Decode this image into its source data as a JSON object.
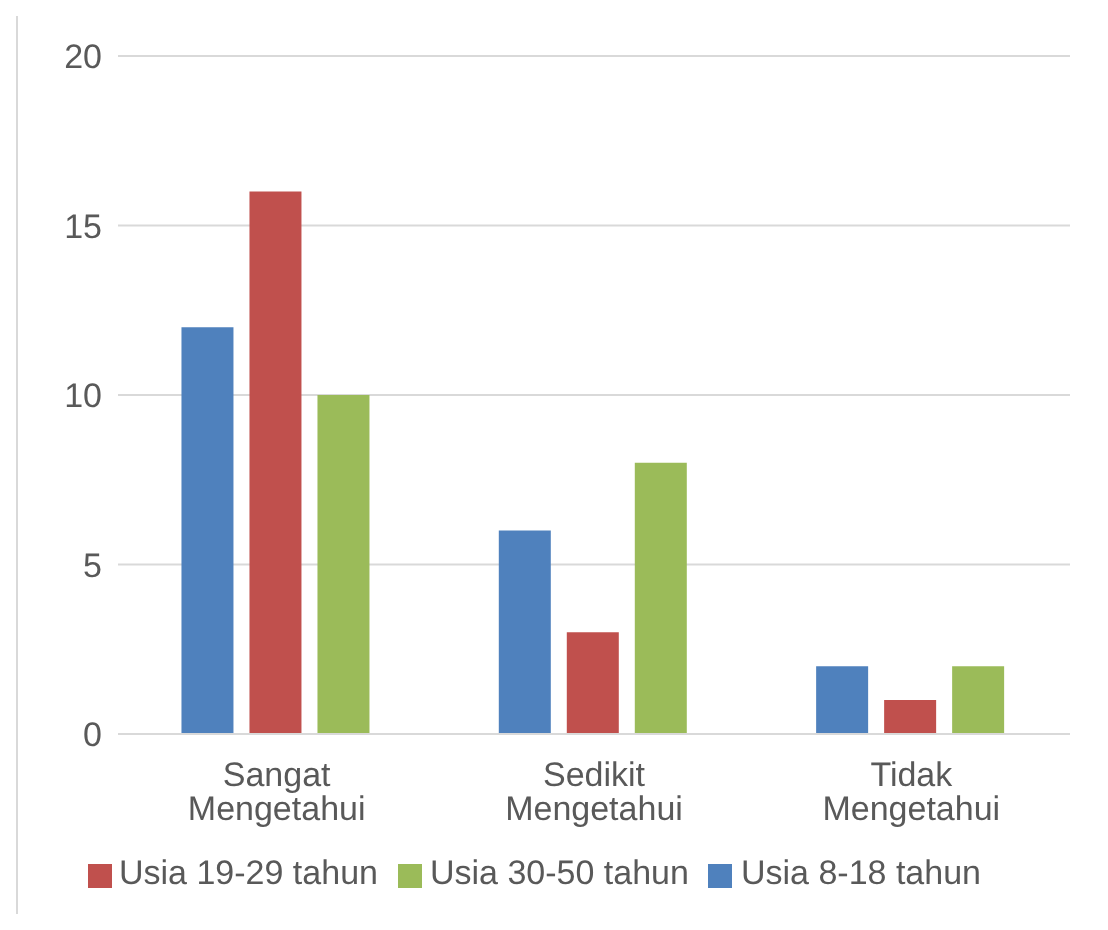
{
  "chart_data": {
    "type": "bar",
    "categories": [
      "Sangat Mengetahui",
      "Sedikit Mengetahui",
      "Tidak Mengetahui"
    ],
    "series": [
      {
        "name": "Usia 8-18 tahun",
        "color": "#4f81bd",
        "values": [
          12,
          6,
          2
        ]
      },
      {
        "name": "Usia 19-29 tahun",
        "color": "#c0504d",
        "values": [
          16,
          3,
          1
        ]
      },
      {
        "name": "Usia 30-50 tahun",
        "color": "#9bbb59",
        "values": [
          10,
          8,
          2
        ]
      }
    ],
    "ylim": [
      0,
      20
    ],
    "yticks": [
      0,
      5,
      10,
      15,
      20
    ],
    "grid": "y",
    "legend": "bottom"
  }
}
